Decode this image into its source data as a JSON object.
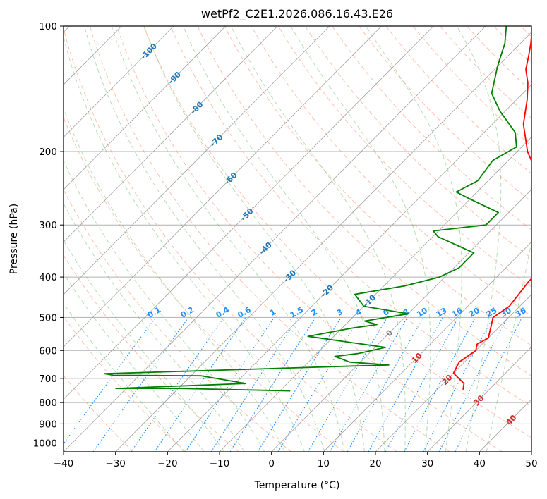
{
  "chart_data": {
    "type": "line",
    "subtype": "skew-T log-P diagram",
    "title": "wetPf2_C2E1.2026.086.16.43.E26",
    "xlabel": "Temperature (°C)",
    "ylabel": "Pressure (hPa)",
    "xlim": [
      -40,
      50
    ],
    "ylim": [
      1050,
      100
    ],
    "y_scale": "log",
    "x_ticks": [
      "−40",
      "−30",
      "−20",
      "−10",
      "0",
      "10",
      "20",
      "30",
      "40",
      "50"
    ],
    "x_tick_values": [
      -40,
      -30,
      -20,
      -10,
      0,
      10,
      20,
      30,
      40,
      50
    ],
    "y_ticks": [
      "100",
      "200",
      "300",
      "400",
      "500",
      "600",
      "700",
      "800",
      "900",
      "1000"
    ],
    "y_tick_values": [
      100,
      200,
      300,
      400,
      500,
      600,
      700,
      800,
      900,
      1000
    ],
    "grid": true,
    "colors": {
      "temperature": "#ff0000",
      "dewpoint": "#008000",
      "isotherm": "#a0a0a0",
      "dry_adiabat": "#ff8c69",
      "moist_adiabat": "#2ca02c",
      "mixing_ratio": "#1e90ff",
      "dry_adiabat_label": "#d62728",
      "moist_adiabat_label": "#1f77b4",
      "zero_label": "#808080"
    },
    "series": [
      {
        "points": [
          [
            25,
            745
          ],
          [
            24,
            720
          ],
          [
            20,
            680
          ],
          [
            19,
            640
          ],
          [
            20,
            600
          ],
          [
            19,
            580
          ],
          [
            20,
            560
          ],
          [
            17,
            500
          ],
          [
            18,
            470
          ],
          [
            17,
            410
          ],
          [
            17,
            380
          ],
          [
            14,
            345
          ],
          [
            10,
            300
          ],
          [
            1,
            240
          ],
          [
            -8,
            200
          ],
          [
            -14,
            172
          ],
          [
            -18,
            150
          ],
          [
            -21,
            137
          ],
          [
            -24,
            127
          ],
          [
            -26,
            118
          ],
          [
            -28,
            110
          ],
          [
            -31,
            100
          ]
        ]
      },
      {
        "points": [
          [
            -8,
            750
          ],
          [
            -30,
            740
          ],
          [
            -42,
            740
          ],
          [
            -18,
            720
          ],
          [
            -28,
            690
          ],
          [
            -45,
            688
          ],
          [
            -47,
            682
          ],
          [
            6,
            650
          ],
          [
            -2,
            640
          ],
          [
            -6,
            620
          ],
          [
            -2,
            610
          ],
          [
            2,
            590
          ],
          [
            -15,
            555
          ],
          [
            -8,
            530
          ],
          [
            -4,
            520
          ],
          [
            -7,
            510
          ],
          [
            0,
            490
          ],
          [
            -10,
            470
          ],
          [
            -14,
            440
          ],
          [
            -6,
            420
          ],
          [
            -1,
            400
          ],
          [
            1,
            380
          ],
          [
            1,
            350
          ],
          [
            -9,
            320
          ],
          [
            -11,
            310
          ],
          [
            -2,
            300
          ],
          [
            -2,
            280
          ],
          [
            -10,
            260
          ],
          [
            -14,
            250
          ],
          [
            -12,
            235
          ],
          [
            -13,
            210
          ],
          [
            -11,
            195
          ],
          [
            -14,
            180
          ],
          [
            -21,
            160
          ],
          [
            -26,
            145
          ],
          [
            -30,
            125
          ],
          [
            -33,
            110
          ],
          [
            -36,
            100
          ]
        ]
      }
    ],
    "moist_adiabat_labels": [
      "-100",
      "-90",
      "-80",
      "-70",
      "-60",
      "-50",
      "-40",
      "-30",
      "-20",
      "-10",
      "0"
    ],
    "dry_adiabat_labels": [
      "10",
      "20",
      "30",
      "40"
    ],
    "mixing_ratio_labels": [
      "0.1",
      "0.2",
      "0.4",
      "0.6",
      "1",
      "1.5",
      "2",
      "3",
      "4",
      "6",
      "8",
      "10",
      "13",
      "16",
      "20",
      "25",
      "30",
      "36"
    ],
    "mixing_ratio_values": [
      0.1,
      0.2,
      0.4,
      0.6,
      1,
      1.5,
      2,
      3,
      4,
      6,
      8,
      10,
      13,
      16,
      20,
      25,
      30,
      36
    ]
  }
}
